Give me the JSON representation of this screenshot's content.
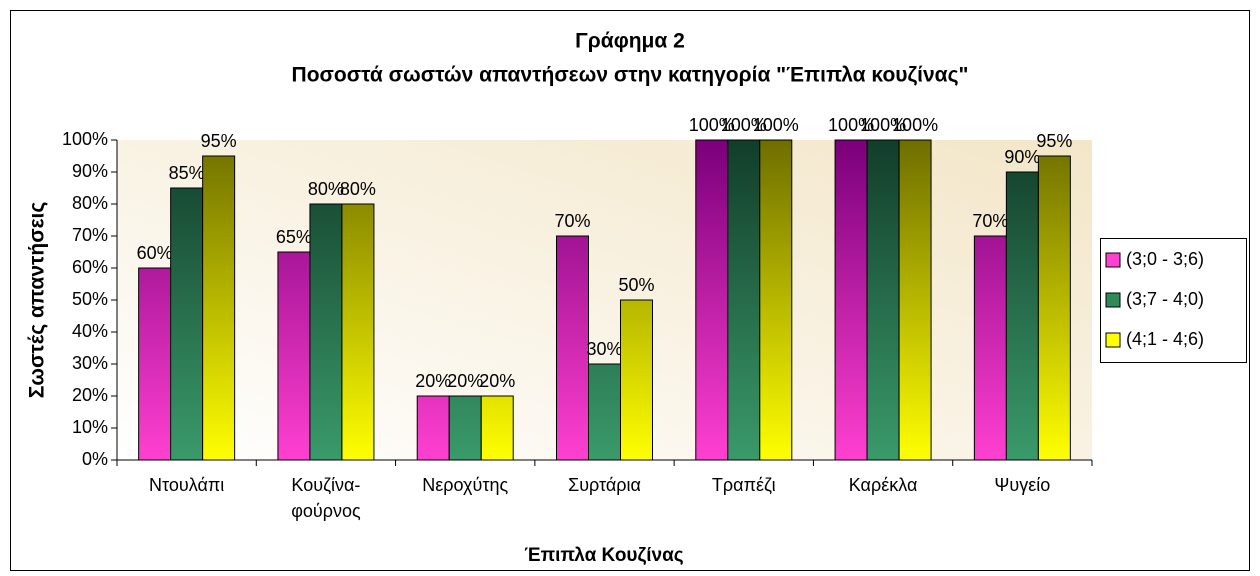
{
  "chart_data": {
    "type": "bar",
    "title": "Γράφημα 2",
    "subtitle": "Ποσοστά σωστών απαντήσεων στην κατηγορία \"Έπιπλα κουζίνας\"",
    "x_label": "Έπιπλα Κουζίνας",
    "y_label": "Σωστές απαντήσεις",
    "categories": [
      "Ντουλάπι",
      "Κουζίνα-φούρνος",
      "Νεροχύτης",
      "Συρτάρια",
      "Τραπέζι",
      "Καρέκλα",
      "Ψυγείο"
    ],
    "series": [
      {
        "name": "(3;0 - 3;6)",
        "color": "#ff40d0",
        "gradient": [
          "#7a007a",
          "#ff40d0"
        ],
        "values": [
          60,
          65,
          20,
          70,
          100,
          100,
          70
        ],
        "value_labels": [
          "60%",
          "65%",
          "20%",
          "70%",
          "100%",
          "100%",
          "70%"
        ]
      },
      {
        "name": "(3;7 - 4;0)",
        "color": "#2e8b57",
        "gradient": [
          "#123d2a",
          "#3a9a6a"
        ],
        "values": [
          85,
          80,
          20,
          30,
          100,
          100,
          90
        ],
        "value_labels": [
          "85%",
          "80%",
          "20%",
          "30%",
          "100%",
          "100%",
          "90%"
        ]
      },
      {
        "name": "(4;1 - 4;6)",
        "color": "#ffff00",
        "gradient": [
          "#6e6e00",
          "#ffff00"
        ],
        "values": [
          95,
          80,
          20,
          50,
          100,
          100,
          95
        ],
        "value_labels": [
          "95%",
          "80%",
          "20%",
          "50%",
          "100%",
          "100%",
          "95%"
        ]
      }
    ],
    "ylim": [
      0,
      100
    ],
    "yticks": [
      {
        "value": 0,
        "label": "0%"
      },
      {
        "value": 10,
        "label": "10%"
      },
      {
        "value": 20,
        "label": "20%"
      },
      {
        "value": 30,
        "label": "30%"
      },
      {
        "value": 40,
        "label": "40%"
      },
      {
        "value": 50,
        "label": "50%"
      },
      {
        "value": 60,
        "label": "60%"
      },
      {
        "value": 70,
        "label": "70%"
      },
      {
        "value": 80,
        "label": "80%"
      },
      {
        "value": 90,
        "label": "90%"
      },
      {
        "value": 100,
        "label": "100%"
      }
    ],
    "grid": false,
    "legend": "right"
  }
}
